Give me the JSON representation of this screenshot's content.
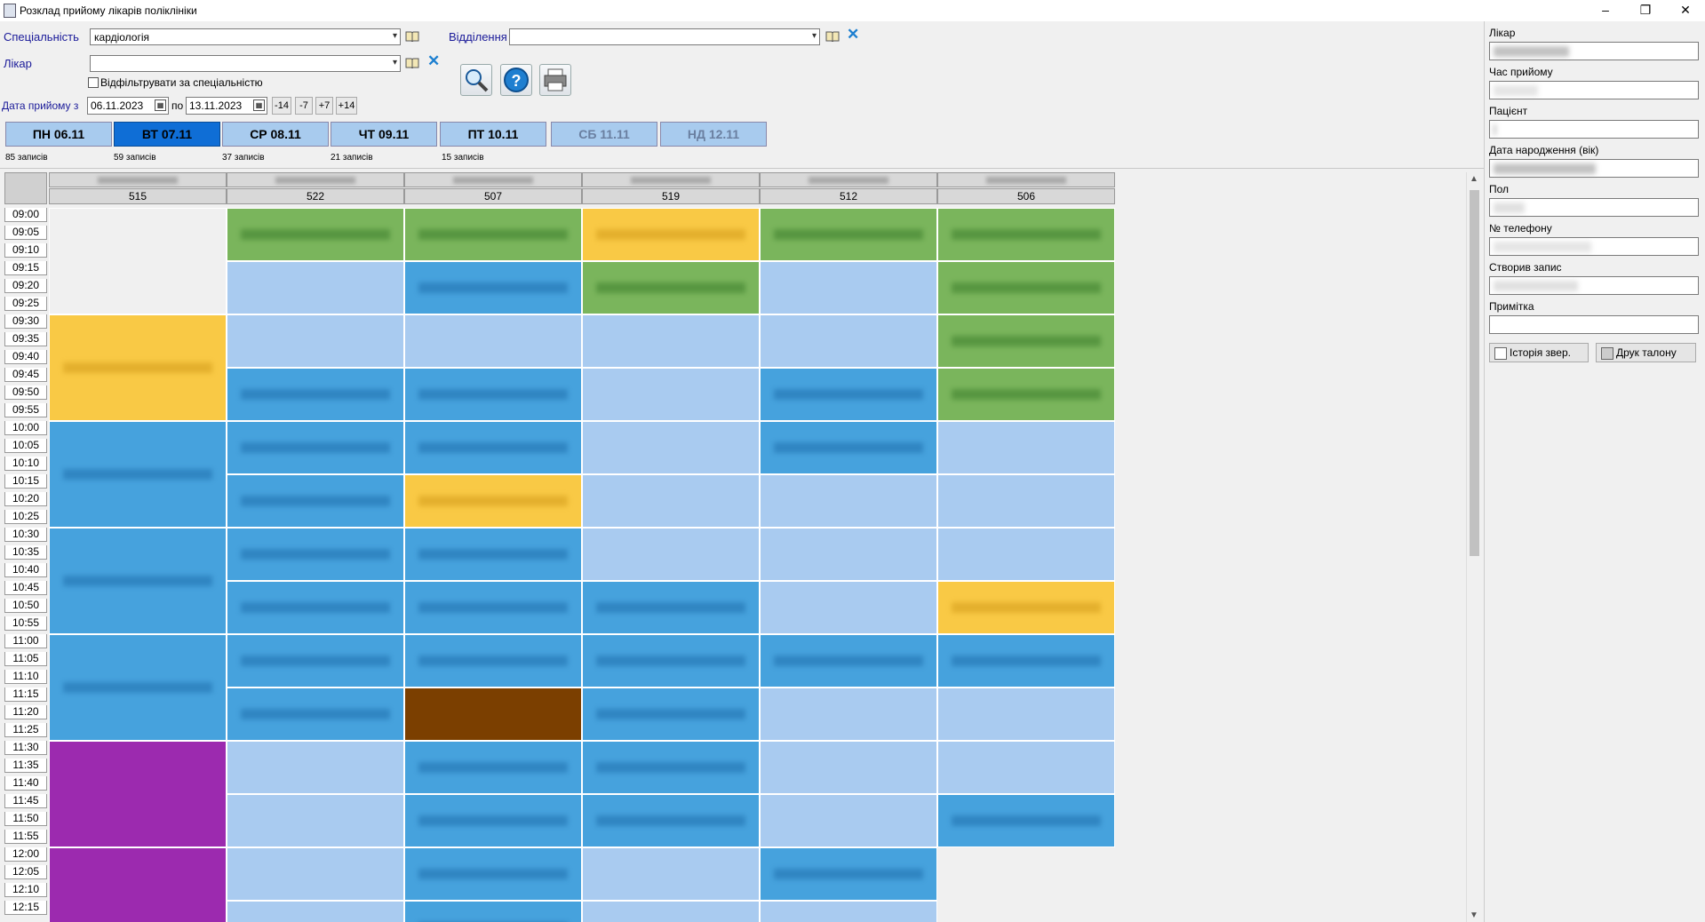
{
  "window": {
    "title": "Розклад прийому лікарів поліклініки",
    "minimize": "–",
    "restore": "❐",
    "close": "✕"
  },
  "filters": {
    "speciality_label": "Спеціальність",
    "speciality_value": "кардіологія",
    "department_label": "Відділення",
    "department_value": "",
    "doctor_label": "Лікар",
    "doctor_value": "",
    "filter_checkbox_label": "Відфільтрувати за спеціальністю",
    "date_label": "Дата прийому з",
    "date_from": "06.11.2023",
    "date_to_label": "по",
    "date_to": "13.11.2023",
    "shift_buttons": [
      "-14",
      "-7",
      "+7",
      "+14"
    ]
  },
  "days": [
    {
      "label": "ПН 06.11",
      "count": "85 записів"
    },
    {
      "label": "ВТ 07.11",
      "count": "59 записів",
      "active": true
    },
    {
      "label": "СР 08.11",
      "count": "37 записів"
    },
    {
      "label": "ЧТ 09.11",
      "count": "21 записів"
    },
    {
      "label": "ПТ 10.11",
      "count": "15 записів"
    },
    {
      "label": "СБ 11.11",
      "count": ""
    },
    {
      "label": "НД 12.11",
      "count": ""
    }
  ],
  "rooms": [
    "515",
    "522",
    "507",
    "519",
    "512",
    "506"
  ],
  "times": [
    "09:00",
    "09:05",
    "09:10",
    "09:15",
    "09:20",
    "09:25",
    "09:30",
    "09:35",
    "09:40",
    "09:45",
    "09:50",
    "09:55",
    "10:00",
    "10:05",
    "10:10",
    "10:15",
    "10:20",
    "10:25",
    "10:30",
    "10:35",
    "10:40",
    "10:45",
    "10:50",
    "10:55",
    "11:00",
    "11:05",
    "11:10",
    "11:15",
    "11:20",
    "11:25",
    "11:30",
    "11:35",
    "11:40",
    "11:45",
    "11:50",
    "11:55",
    "12:00",
    "12:05",
    "12:10",
    "12:15"
  ],
  "right_panel": {
    "doctor_label": "Лікар",
    "time_label": "Час прийому",
    "patient_label": "Пацієнт",
    "birth_label": "Дата народження (вік)",
    "sex_label": "Пол",
    "phone_label": "№ телефону",
    "created_label": "Створив запис",
    "note_label": "Примітка",
    "history_button": "Історія звер.",
    "print_button": "Друк талону"
  },
  "colors": {
    "confirmed": "#7ab55c",
    "pending": "#f9c945",
    "booked": "#46a2dd",
    "free": "#a9cbf0",
    "blocked": "#7b3f00",
    "special": "#9c2aaf",
    "active_day": "#0f6ed6"
  }
}
